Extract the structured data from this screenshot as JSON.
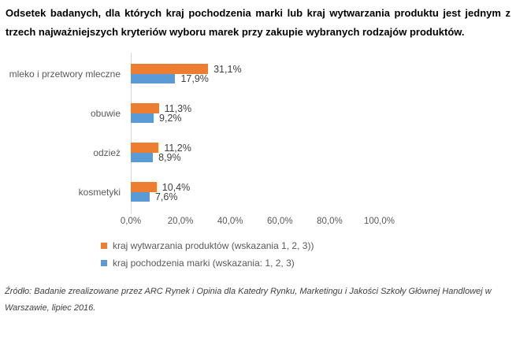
{
  "chart_data": {
    "type": "bar",
    "orientation": "horizontal",
    "title": "Odsetek badanych, dla których kraj pochodzenia marki lub kraj wytwarzania produktu jest jednym z trzech najważniejszych kryteriów wyboru marek przy zakupie wybranych rodzajów produktów.",
    "categories": [
      "mleko i przetwory mleczne",
      "obuwie",
      "odzież",
      "kosmetyki"
    ],
    "series": [
      {
        "name": "kraj wytwarzania produktów (wskazania 1, 2, 3))",
        "color": "#ED7D31",
        "values": [
          31.1,
          11.3,
          11.2,
          10.4
        ],
        "value_labels": [
          "31,1%",
          "11,3%",
          "11,2%",
          "10,4%"
        ]
      },
      {
        "name": "kraj pochodzenia marki (wskazania: 1, 2, 3)",
        "color": "#5B9BD5",
        "values": [
          17.9,
          9.2,
          8.9,
          7.6
        ],
        "value_labels": [
          "17,9%",
          "9,2%",
          "8,9%",
          "7,6%"
        ]
      }
    ],
    "x_tick_values": [
      0,
      20,
      40,
      60,
      80,
      100
    ],
    "x_tick_labels": [
      "0,0%",
      "20,0%",
      "40,0%",
      "60,0%",
      "80,0%",
      "100,0%"
    ],
    "xlim": [
      0,
      100
    ],
    "grid": false,
    "legend_position": "bottom-left",
    "axis_color": "#D9D9D9",
    "category_label_color": "#595959",
    "value_label_color": "#404040"
  },
  "source_note": "Źródło: Badanie zrealizowane przez ARC Rynek i Opinia dla Katedry Rynku, Marketingu i Jakości Szkoły Głównej Handlowej w Warszawie, lipiec 2016."
}
